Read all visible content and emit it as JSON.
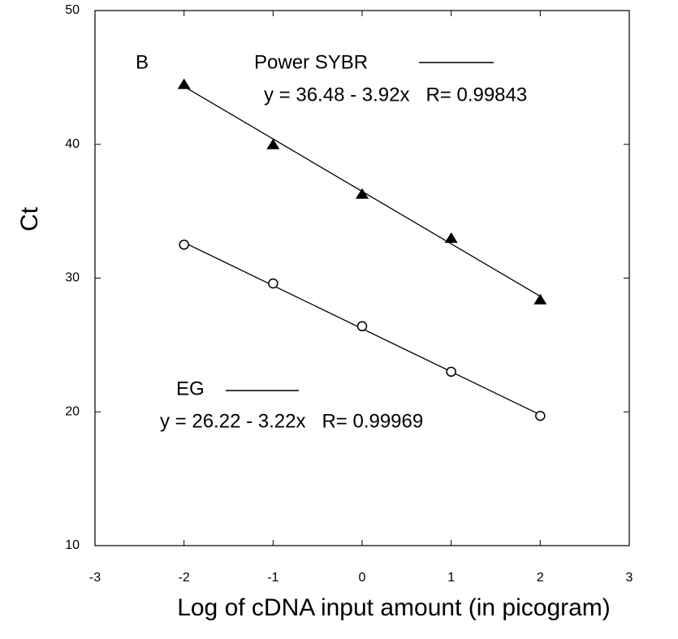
{
  "chart_data": {
    "type": "scatter",
    "annotation": "B",
    "x_label": "Log of cDNA input amount (in picogram)",
    "y_label": "Ct",
    "x": [
      -2,
      -1,
      0,
      1,
      2
    ],
    "xlim": [
      -3,
      3
    ],
    "xticks": [
      -3,
      -2,
      -1,
      0,
      1,
      2,
      3
    ],
    "ylim": [
      10,
      50
    ],
    "yticks": [
      10,
      20,
      30,
      40,
      50
    ],
    "series": [
      {
        "name": "Power SYBR",
        "marker": "triangle",
        "color": "#000000",
        "values": [
          44.5,
          40.0,
          36.3,
          33.0,
          28.4
        ],
        "equation": "y = 36.48 - 3.92x   R= 0.99843",
        "fit": {
          "intercept": 36.48,
          "slope": -3.92
        }
      },
      {
        "name": "EG",
        "marker": "circle",
        "color": "#000000",
        "values": [
          32.5,
          29.6,
          26.4,
          23.0,
          19.7
        ],
        "equation": "y = 26.22 - 3.22x   R= 0.99969",
        "fit": {
          "intercept": 26.22,
          "slope": -3.22
        }
      }
    ]
  }
}
